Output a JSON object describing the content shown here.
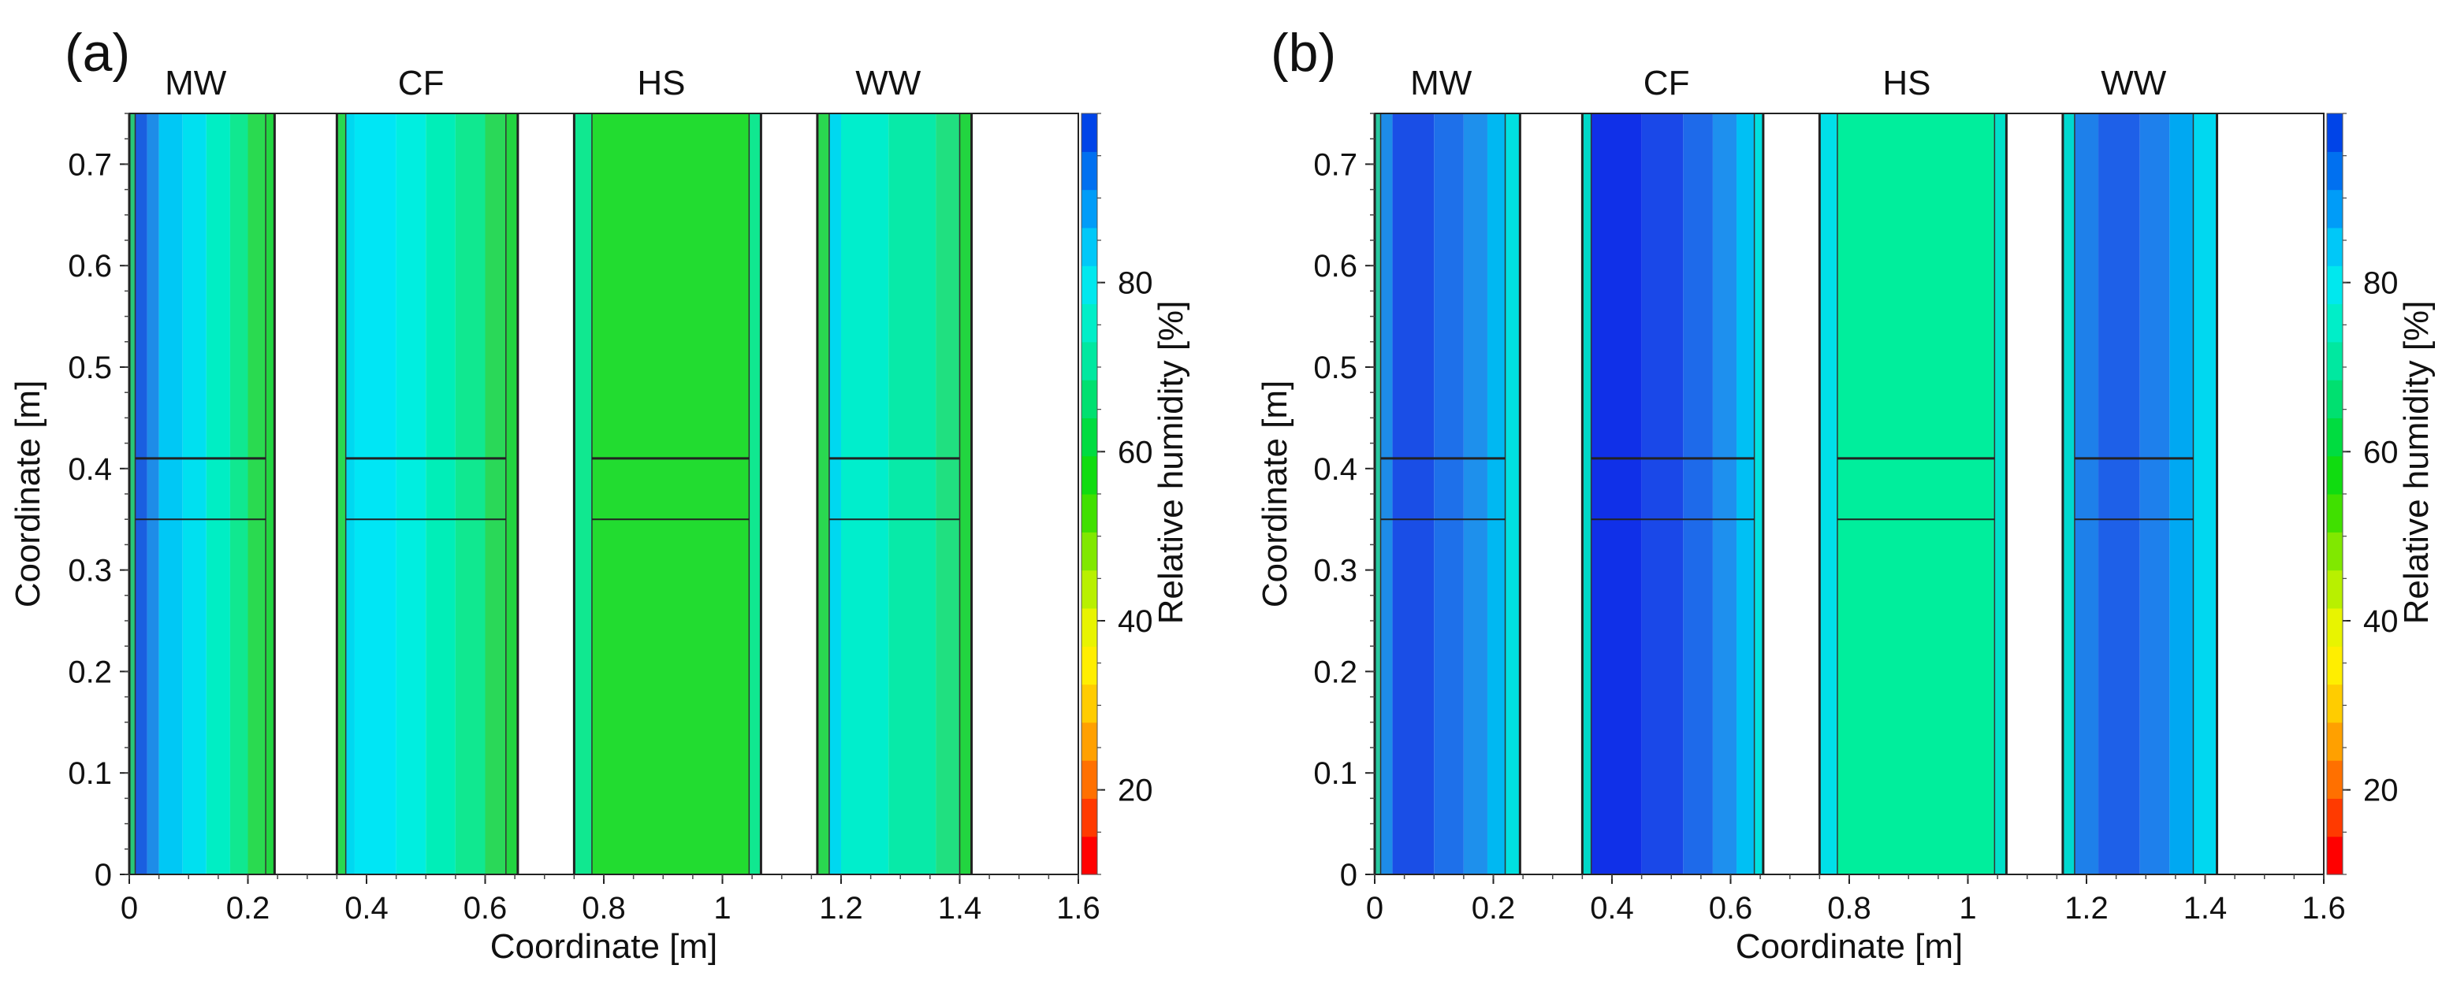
{
  "chart_data": [
    {
      "type": "heatmap",
      "panel_label": "(a)",
      "xlabel": "Coordinate [m]",
      "ylabel": "Coordinate [m]",
      "xlim": [
        0,
        1.6
      ],
      "ylim": [
        0,
        0.75
      ],
      "x_ticks": [
        0,
        0.2,
        0.4,
        0.6,
        0.8,
        1,
        1.2,
        1.4,
        1.6
      ],
      "x_tick_labels": [
        "0",
        "0.2",
        "0.4",
        "0.6",
        "0.8",
        "1",
        "1.2",
        "1.4",
        "1.6"
      ],
      "y_ticks": [
        0,
        0.1,
        0.2,
        0.3,
        0.4,
        0.5,
        0.6,
        0.7
      ],
      "y_tick_labels": [
        "0",
        "0.1",
        "0.2",
        "0.3",
        "0.4",
        "0.5",
        "0.6",
        "0.7"
      ],
      "horizontal_lines_y": [
        0.35,
        0.41
      ],
      "walls": [
        {
          "label": "MW",
          "x0": 0.0,
          "x1": 0.245,
          "bands": [
            {
              "x0": 0.0,
              "x1": 0.01,
              "color": "#28c878"
            },
            {
              "x0": 0.01,
              "x1": 0.03,
              "color": "#1a5fe0"
            },
            {
              "x0": 0.03,
              "x1": 0.05,
              "color": "#1e8ce8"
            },
            {
              "x0": 0.05,
              "x1": 0.09,
              "color": "#00c8f5"
            },
            {
              "x0": 0.09,
              "x1": 0.13,
              "color": "#00e0f0"
            },
            {
              "x0": 0.13,
              "x1": 0.17,
              "color": "#00eec4"
            },
            {
              "x0": 0.17,
              "x1": 0.2,
              "color": "#10e890"
            },
            {
              "x0": 0.2,
              "x1": 0.23,
              "color": "#2ada50"
            },
            {
              "x0": 0.23,
              "x1": 0.245,
              "color": "#22d540"
            }
          ]
        },
        {
          "label": "CF",
          "x0": 0.35,
          "x1": 0.655,
          "bands": [
            {
              "x0": 0.35,
              "x1": 0.365,
              "color": "#2ad850"
            },
            {
              "x0": 0.365,
              "x1": 0.38,
              "color": "#00d8f0"
            },
            {
              "x0": 0.38,
              "x1": 0.45,
              "color": "#00e6f5"
            },
            {
              "x0": 0.45,
              "x1": 0.5,
              "color": "#00eee0"
            },
            {
              "x0": 0.5,
              "x1": 0.55,
              "color": "#00eeb8"
            },
            {
              "x0": 0.55,
              "x1": 0.6,
              "color": "#10e890"
            },
            {
              "x0": 0.6,
              "x1": 0.635,
              "color": "#2ad858"
            },
            {
              "x0": 0.635,
              "x1": 0.655,
              "color": "#22d540"
            }
          ]
        },
        {
          "label": "HS",
          "x0": 0.75,
          "x1": 1.065,
          "bands": [
            {
              "x0": 0.75,
              "x1": 0.78,
              "color": "#10e890"
            },
            {
              "x0": 0.78,
              "x1": 1.045,
              "color": "#22dc30"
            },
            {
              "x0": 1.045,
              "x1": 1.065,
              "color": "#10e890"
            }
          ]
        },
        {
          "label": "WW",
          "x0": 1.16,
          "x1": 1.42,
          "bands": [
            {
              "x0": 1.16,
              "x1": 1.18,
              "color": "#2ad850"
            },
            {
              "x0": 1.18,
              "x1": 1.2,
              "color": "#00d8f0"
            },
            {
              "x0": 1.2,
              "x1": 1.28,
              "color": "#00eecc"
            },
            {
              "x0": 1.28,
              "x1": 1.36,
              "color": "#08eaa8"
            },
            {
              "x0": 1.36,
              "x1": 1.4,
              "color": "#20e080"
            },
            {
              "x0": 1.4,
              "x1": 1.42,
              "color": "#22d540"
            }
          ]
        }
      ],
      "colorbar": {
        "label": "Relative humidity [%]",
        "range": [
          10,
          100
        ],
        "ticks": [
          20,
          40,
          60,
          80
        ],
        "tick_labels": [
          "20",
          "40",
          "60",
          "80"
        ],
        "colors": [
          "#ff0000",
          "#ff3a00",
          "#ff7000",
          "#ffa000",
          "#ffcc00",
          "#ffee00",
          "#e8f400",
          "#b8f000",
          "#80e800",
          "#40e000",
          "#10dc10",
          "#00dc40",
          "#00e070",
          "#00e8a0",
          "#00eec8",
          "#00e8ee",
          "#00c8f8",
          "#009cf8",
          "#0070f0",
          "#0044e8"
        ]
      }
    },
    {
      "type": "heatmap",
      "panel_label": "(b)",
      "xlabel": "Coordinate [m]",
      "ylabel": "Coordinate [m]",
      "xlim": [
        0,
        1.6
      ],
      "ylim": [
        0,
        0.75
      ],
      "x_ticks": [
        0,
        0.2,
        0.4,
        0.6,
        0.8,
        1,
        1.2,
        1.4,
        1.6
      ],
      "x_tick_labels": [
        "0",
        "0.2",
        "0.4",
        "0.6",
        "0.8",
        "1",
        "1.2",
        "1.4",
        "1.6"
      ],
      "y_ticks": [
        0,
        0.1,
        0.2,
        0.3,
        0.4,
        0.5,
        0.6,
        0.7
      ],
      "y_tick_labels": [
        "0",
        "0.1",
        "0.2",
        "0.3",
        "0.4",
        "0.5",
        "0.6",
        "0.7"
      ],
      "horizontal_lines_y": [
        0.35,
        0.41
      ],
      "walls": [
        {
          "label": "MW",
          "x0": 0.0,
          "x1": 0.245,
          "bands": [
            {
              "x0": 0.0,
              "x1": 0.01,
              "color": "#28c8a0"
            },
            {
              "x0": 0.01,
              "x1": 0.03,
              "color": "#1e8ce8"
            },
            {
              "x0": 0.03,
              "x1": 0.1,
              "color": "#1a4ee6"
            },
            {
              "x0": 0.1,
              "x1": 0.15,
              "color": "#1e70ea"
            },
            {
              "x0": 0.15,
              "x1": 0.19,
              "color": "#1e90ec"
            },
            {
              "x0": 0.19,
              "x1": 0.22,
              "color": "#00b8f2"
            },
            {
              "x0": 0.22,
              "x1": 0.245,
              "color": "#00e0e0"
            }
          ]
        },
        {
          "label": "CF",
          "x0": 0.35,
          "x1": 0.655,
          "bands": [
            {
              "x0": 0.35,
              "x1": 0.365,
              "color": "#00d8c8"
            },
            {
              "x0": 0.365,
              "x1": 0.45,
              "color": "#1030e8"
            },
            {
              "x0": 0.45,
              "x1": 0.52,
              "color": "#1a48e8"
            },
            {
              "x0": 0.52,
              "x1": 0.57,
              "color": "#1e6aea"
            },
            {
              "x0": 0.57,
              "x1": 0.61,
              "color": "#1e90ee"
            },
            {
              "x0": 0.61,
              "x1": 0.64,
              "color": "#00c0f4"
            },
            {
              "x0": 0.64,
              "x1": 0.655,
              "color": "#00e0e0"
            }
          ]
        },
        {
          "label": "HS",
          "x0": 0.75,
          "x1": 1.065,
          "bands": [
            {
              "x0": 0.75,
              "x1": 0.78,
              "color": "#00e0e8"
            },
            {
              "x0": 0.78,
              "x1": 1.045,
              "color": "#00ee9c"
            },
            {
              "x0": 1.045,
              "x1": 1.065,
              "color": "#00e0c8"
            }
          ]
        },
        {
          "label": "WW",
          "x0": 1.16,
          "x1": 1.42,
          "bands": [
            {
              "x0": 1.16,
              "x1": 1.18,
              "color": "#00d8d0"
            },
            {
              "x0": 1.18,
              "x1": 1.22,
              "color": "#1e80ea"
            },
            {
              "x0": 1.22,
              "x1": 1.29,
              "color": "#1e60e8"
            },
            {
              "x0": 1.29,
              "x1": 1.34,
              "color": "#1e80ec"
            },
            {
              "x0": 1.34,
              "x1": 1.38,
              "color": "#00a8f2"
            },
            {
              "x0": 1.38,
              "x1": 1.42,
              "color": "#00d8f0"
            }
          ]
        }
      ],
      "colorbar": {
        "label": "Relative humidity [%]",
        "range": [
          10,
          100
        ],
        "ticks": [
          20,
          40,
          60,
          80
        ],
        "tick_labels": [
          "20",
          "40",
          "60",
          "80"
        ],
        "colors": [
          "#ff0000",
          "#ff3a00",
          "#ff7000",
          "#ffa000",
          "#ffcc00",
          "#ffee00",
          "#e8f400",
          "#b8f000",
          "#80e800",
          "#40e000",
          "#10dc10",
          "#00dc40",
          "#00e070",
          "#00e8a0",
          "#00eec8",
          "#00e8ee",
          "#00c8f8",
          "#009cf8",
          "#0070f0",
          "#0044e8"
        ]
      }
    }
  ]
}
